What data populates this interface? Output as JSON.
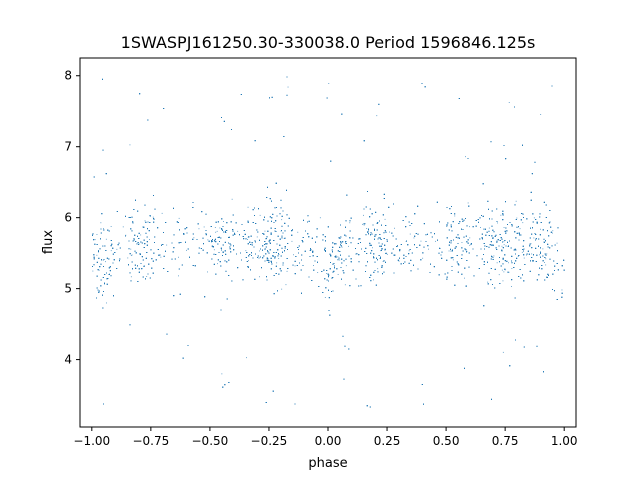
{
  "chart_data": {
    "type": "scatter",
    "title": "1SWASPJ161250.30-330038.0 Period 1596846.125s",
    "xlabel": "phase",
    "ylabel": "flux",
    "xlim": [
      -1.05,
      1.05
    ],
    "ylim": [
      3.05,
      8.25
    ],
    "xticks": [
      "−1.00",
      "−0.75",
      "−0.50",
      "−0.25",
      "0.00",
      "0.25",
      "0.50",
      "0.75",
      "1.00"
    ],
    "yticks": [
      "4",
      "5",
      "6",
      "7",
      "8"
    ],
    "grid": false,
    "legend": "none",
    "point_color": "#1f77b4",
    "series": [
      {
        "phase_range": [
          -1.0,
          1.0
        ],
        "flux_typical_range": [
          4.8,
          6.5
        ],
        "flux_extreme_range": [
          3.3,
          8.0
        ],
        "dense_clump_phases": [
          -0.97,
          -0.8,
          -0.45,
          -0.3,
          -0.22,
          0.03,
          0.2,
          0.55,
          0.7,
          0.78,
          0.9
        ],
        "dip_phases": [
          -0.95,
          0.0,
          1.0
        ]
      }
    ]
  }
}
